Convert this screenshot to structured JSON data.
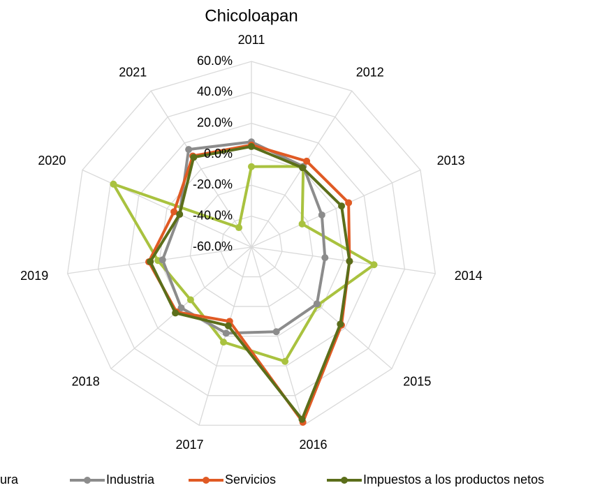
{
  "chart_data": {
    "type": "radar",
    "title": "Chicoloapan",
    "categories": [
      "2011",
      "2012",
      "2013",
      "2014",
      "2015",
      "2016",
      "2017",
      "2018",
      "2019",
      "2020",
      "2021"
    ],
    "series": [
      {
        "name": "ura",
        "color": "#a9c23f",
        "values": [
          -8,
          2,
          -24,
          20,
          -3,
          17,
          4,
          -8,
          1,
          38,
          -45
        ]
      },
      {
        "name": "Industria",
        "color": "#8c8c8c",
        "values": [
          8,
          2,
          -10,
          -12,
          -4,
          -3,
          -2,
          0,
          -2,
          -9,
          15
        ]
      },
      {
        "name": "Servicios",
        "color": "#e05a24",
        "values": [
          6,
          6,
          9,
          4,
          17,
          58,
          -10,
          4,
          7,
          -5,
          10
        ]
      },
      {
        "name": "Impuestos a los productos netos",
        "color": "#5b6e1a",
        "values": [
          5,
          1,
          4,
          4,
          16,
          56,
          -7,
          5,
          6,
          -9,
          9
        ]
      }
    ],
    "ylim": [
      -60,
      60
    ],
    "yticks": [
      {
        "value": -60,
        "label": "-60.0%"
      },
      {
        "value": -40,
        "label": "-40.0%"
      },
      {
        "value": -20,
        "label": "-20.0%"
      },
      {
        "value": 0,
        "label": "0.0%"
      },
      {
        "value": 20,
        "label": "20.0%"
      },
      {
        "value": 40,
        "label": "40.0%"
      },
      {
        "value": 60,
        "label": "60.0%"
      }
    ],
    "grid": true,
    "legend": "bottom"
  }
}
